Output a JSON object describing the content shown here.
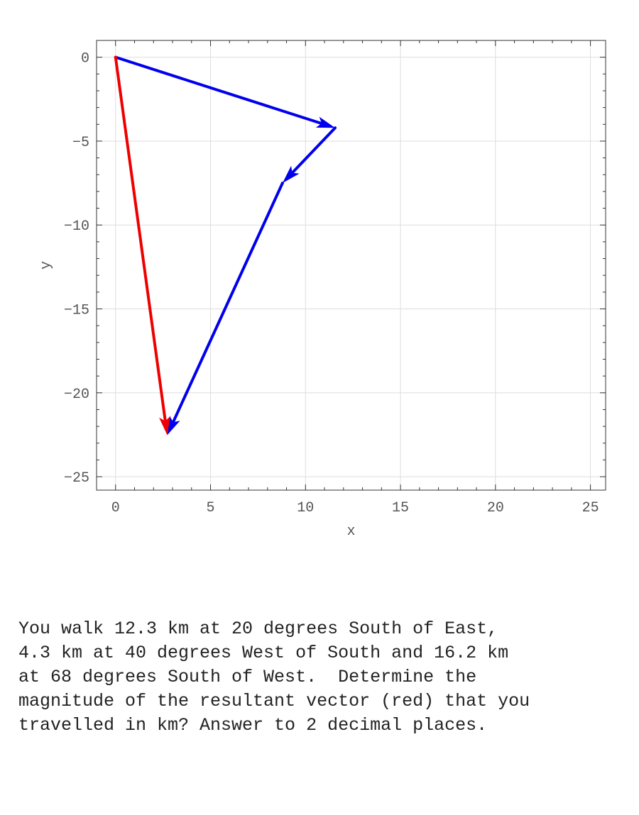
{
  "chart_data": {
    "type": "vector-plot",
    "title": "",
    "xlabel": "x",
    "ylabel": "y",
    "xlim": [
      -1,
      25.8
    ],
    "ylim": [
      -25.8,
      1
    ],
    "xticks": [
      0,
      5,
      10,
      15,
      20,
      25
    ],
    "yticks": [
      0,
      -5,
      -10,
      -15,
      -20,
      -25
    ],
    "grid": true,
    "series": [
      {
        "color": "#0000ee",
        "vectors": [
          {
            "from": [
              0,
              0
            ],
            "to": [
              11.56,
              -4.21
            ]
          },
          {
            "from": [
              11.56,
              -4.21
            ],
            "to": [
              8.79,
              -7.5
            ]
          },
          {
            "from": [
              8.79,
              -7.5
            ],
            "to": [
              2.72,
              -22.52
            ]
          }
        ]
      },
      {
        "color": "#ee0000",
        "vectors": [
          {
            "from": [
              0,
              0
            ],
            "to": [
              2.72,
              -22.52
            ]
          }
        ]
      }
    ]
  },
  "question": {
    "lines": [
      "You walk 12.3 km at 20 degrees South of East,",
      "4.3 km at 40 degrees West of South and 16.2 km",
      "at 68 degrees South of West.  Determine the",
      "magnitude of the resultant vector (red) that you",
      "travelled in km? Answer to 2 decimal places."
    ]
  }
}
